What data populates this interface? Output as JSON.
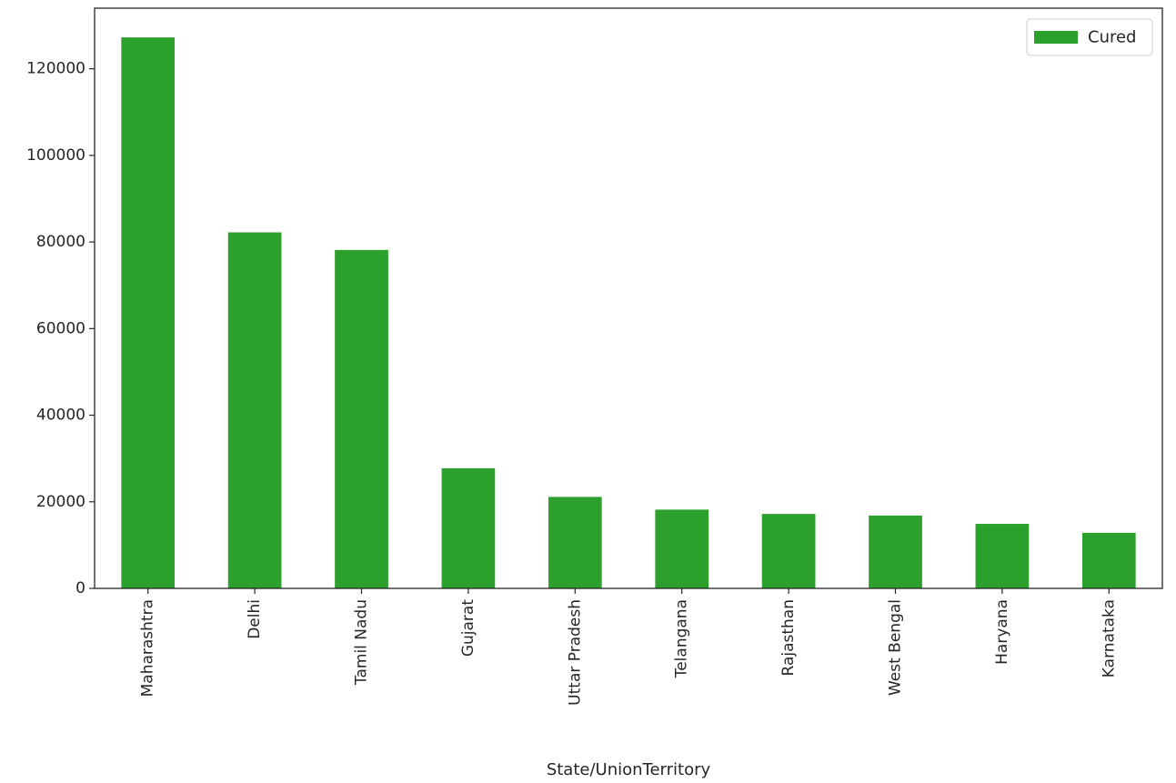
{
  "chart_data": {
    "type": "bar",
    "title": "",
    "xlabel": "State/UnionTerritory",
    "ylabel": "",
    "categories": [
      "Maharashtra",
      "Delhi",
      "Tamil Nadu",
      "Gujarat",
      "Uttar Pradesh",
      "Telangana",
      "Rajasthan",
      "West Bengal",
      "Haryana",
      "Karnataka"
    ],
    "series": [
      {
        "name": "Cured",
        "color": "#2ca02c",
        "values": [
          127259,
          82226,
          78161,
          27742,
          21127,
          18192,
          17194,
          16826,
          14904,
          12833
        ]
      }
    ],
    "ylim": [
      0,
      134000
    ],
    "yticks": [
      0,
      20000,
      40000,
      60000,
      80000,
      100000,
      120000
    ],
    "ytick_labels": [
      "0",
      "20000",
      "40000",
      "60000",
      "80000",
      "100000",
      "120000"
    ],
    "grid": false,
    "legend": {
      "position": "top-right",
      "entries": [
        "Cured"
      ]
    }
  }
}
